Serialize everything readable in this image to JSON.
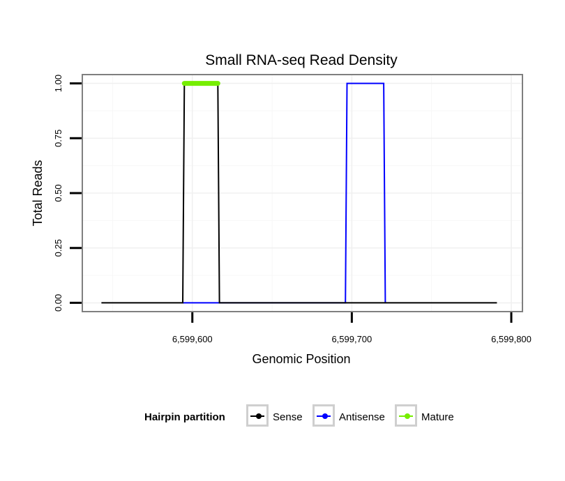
{
  "chart_data": {
    "type": "line",
    "title": "Small RNA-seq Read Density",
    "xlabel": "Genomic Position",
    "ylabel": "Total Reads",
    "xlim": [
      6599531,
      6599807
    ],
    "ylim": [
      -0.04,
      1.04
    ],
    "x_ticks": [
      6599600,
      6599700,
      6599800
    ],
    "x_tick_labels": [
      "6,599,600",
      "6,599,700",
      "6,599,800"
    ],
    "y_ticks": [
      0,
      0.25,
      0.5,
      0.75,
      1
    ],
    "y_tick_labels": [
      "0.00",
      "0.25",
      "0.50",
      "0.75",
      "1.00"
    ],
    "grid": true,
    "series": [
      {
        "name": "Sense",
        "color": "#000000",
        "x": [
          6599543,
          6599594,
          6599595,
          6599616,
          6599617,
          6599791
        ],
        "values": [
          0,
          0,
          1,
          1,
          0,
          0
        ]
      },
      {
        "name": "Antisense",
        "color": "#0000ff",
        "x": [
          6599594,
          6599696,
          6599697,
          6599720,
          6599721
        ],
        "values": [
          0,
          0,
          1,
          1,
          0
        ]
      },
      {
        "name": "Mature",
        "color": "#76ee00",
        "x": [
          6599595,
          6599616
        ],
        "values": [
          1,
          1
        ]
      }
    ],
    "legend": {
      "title": "Hairpin partition",
      "position": "bottom",
      "entries": [
        "Sense",
        "Antisense",
        "Mature"
      ]
    }
  }
}
